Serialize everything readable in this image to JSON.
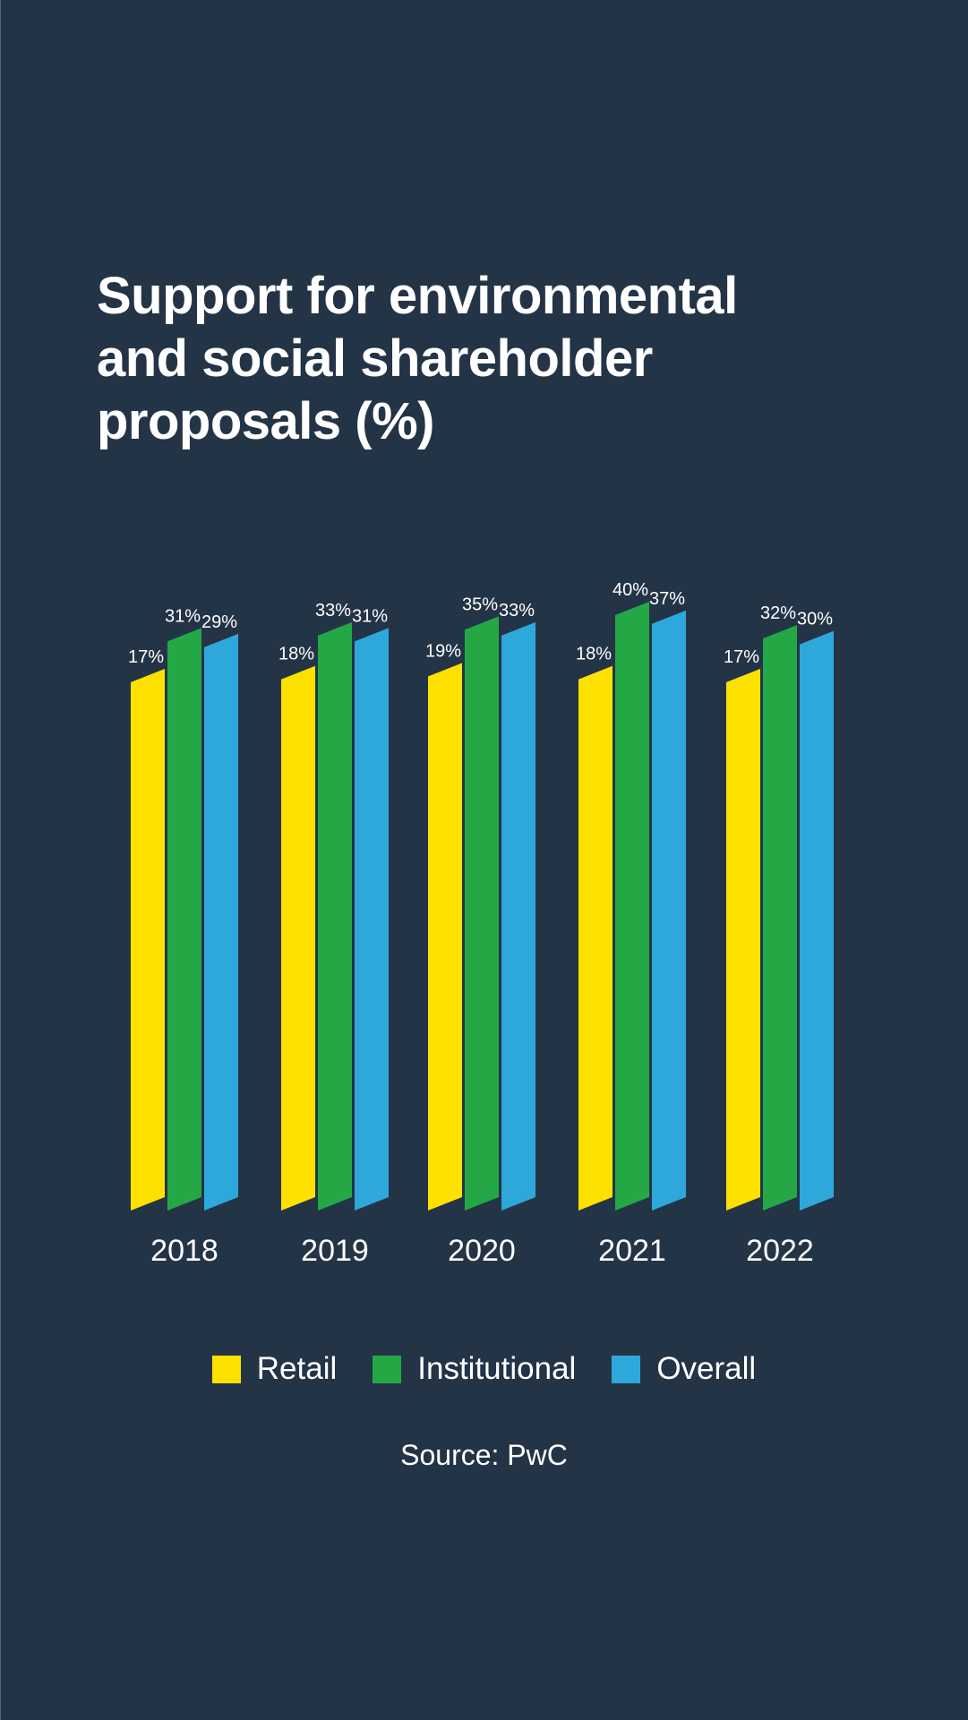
{
  "colors": {
    "background": "#243447",
    "retail": "#ffe100",
    "institutional": "#24a846",
    "overall": "#2ea8da",
    "text": "#ffffff"
  },
  "chart_data": {
    "type": "bar",
    "title": "Support for environmental and social shareholder proposals (%)",
    "title_lines": [
      "Support for environmental",
      "and social shareholder",
      "proposals (%)"
    ],
    "xlabel": "",
    "ylabel": "",
    "categories": [
      "2018",
      "2019",
      "2020",
      "2021",
      "2022"
    ],
    "series": [
      {
        "name": "Retail",
        "color": "#ffe100",
        "values": [
          17,
          18,
          19,
          18,
          17
        ],
        "labels": [
          "17%",
          "18%",
          "19%",
          "18%",
          "17%"
        ]
      },
      {
        "name": "Institutional",
        "color": "#24a846",
        "values": [
          31,
          33,
          35,
          40,
          32
        ],
        "labels": [
          "31%",
          "33%",
          "35%",
          "40%",
          "32%"
        ]
      },
      {
        "name": "Overall",
        "color": "#2ea8da",
        "values": [
          29,
          31,
          33,
          37,
          30
        ],
        "labels": [
          "29%",
          "31%",
          "33%",
          "37%",
          "30%"
        ]
      }
    ],
    "unit": "%",
    "grid": false,
    "legend_position": "bottom-center",
    "source": "Source: PwC"
  }
}
